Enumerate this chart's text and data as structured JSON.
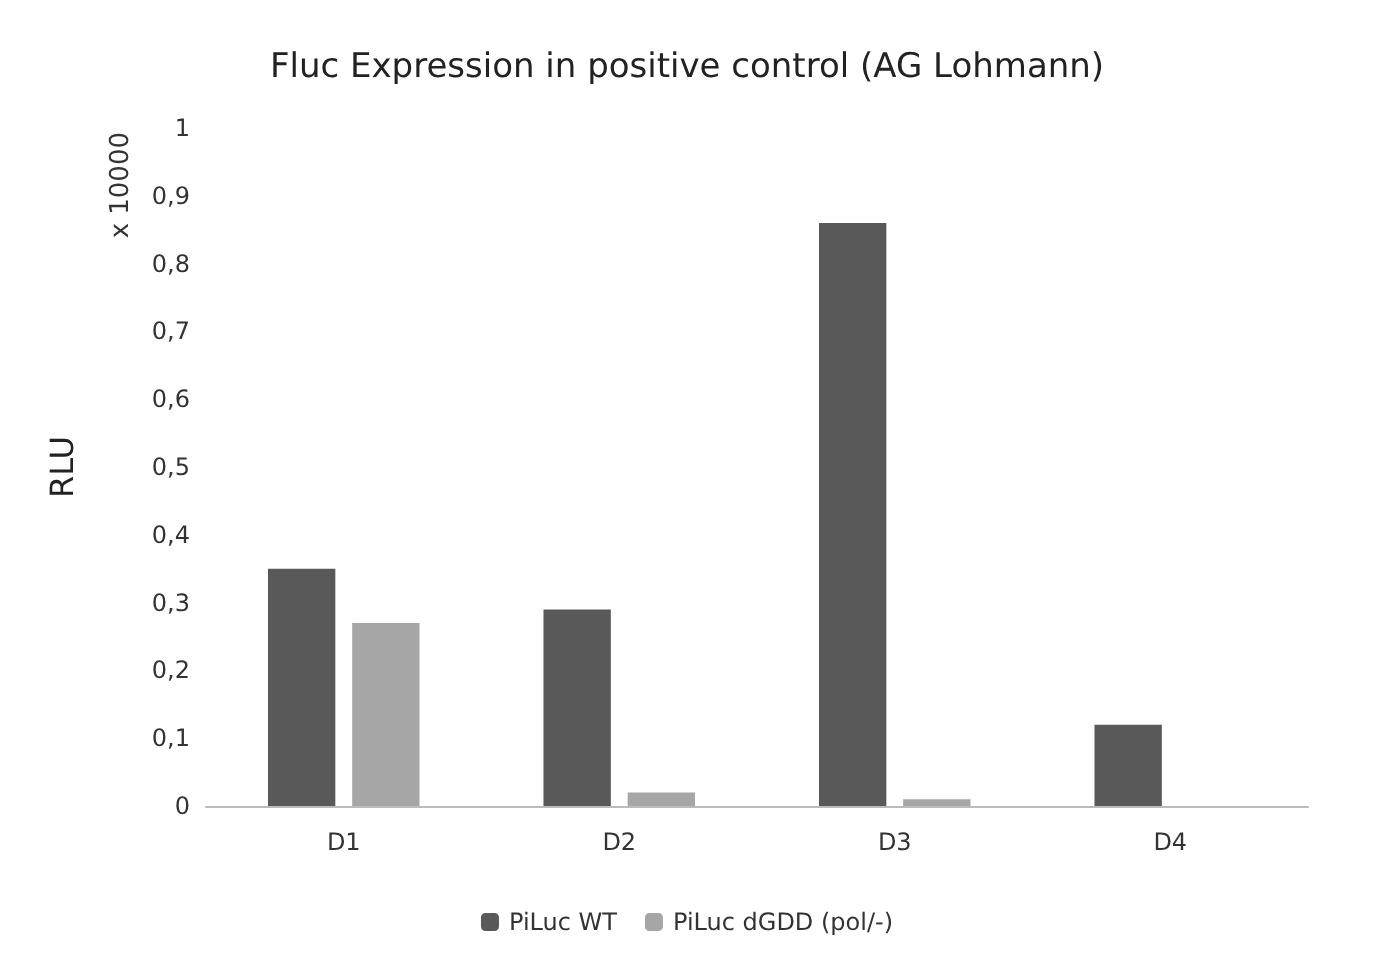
{
  "chart_data": {
    "type": "bar",
    "title": "Fluc Expression in positive control (AG Lohmann)",
    "ylabel": "RLU",
    "annotations": [
      "x 10000"
    ],
    "categories": [
      "D1",
      "D2",
      "D3",
      "D4"
    ],
    "series": [
      {
        "name": "PiLuc WT",
        "color": "#595959",
        "values": [
          0.35,
          0.29,
          0.86,
          0.12
        ]
      },
      {
        "name": "PiLuc dGDD (pol/-)",
        "color": "#a6a6a6",
        "values": [
          0.27,
          0.02,
          0.01,
          0
        ]
      }
    ],
    "ylim": [
      0,
      1
    ],
    "yticks": [
      0,
      {
        "value": 0.1,
        "label": "0,1"
      },
      {
        "value": 0.2,
        "label": "0,2"
      },
      {
        "value": 0.3,
        "label": "0,3"
      },
      {
        "value": 0.4,
        "label": "0,4"
      },
      {
        "value": 0.5,
        "label": "0,5"
      },
      {
        "value": 0.6,
        "label": "0,6"
      },
      {
        "value": 0.7,
        "label": "0,7"
      },
      {
        "value": 0.8,
        "label": "0,8"
      },
      {
        "value": 0.9,
        "label": "0,9"
      },
      1
    ],
    "grid": false,
    "legend": "bottom"
  }
}
